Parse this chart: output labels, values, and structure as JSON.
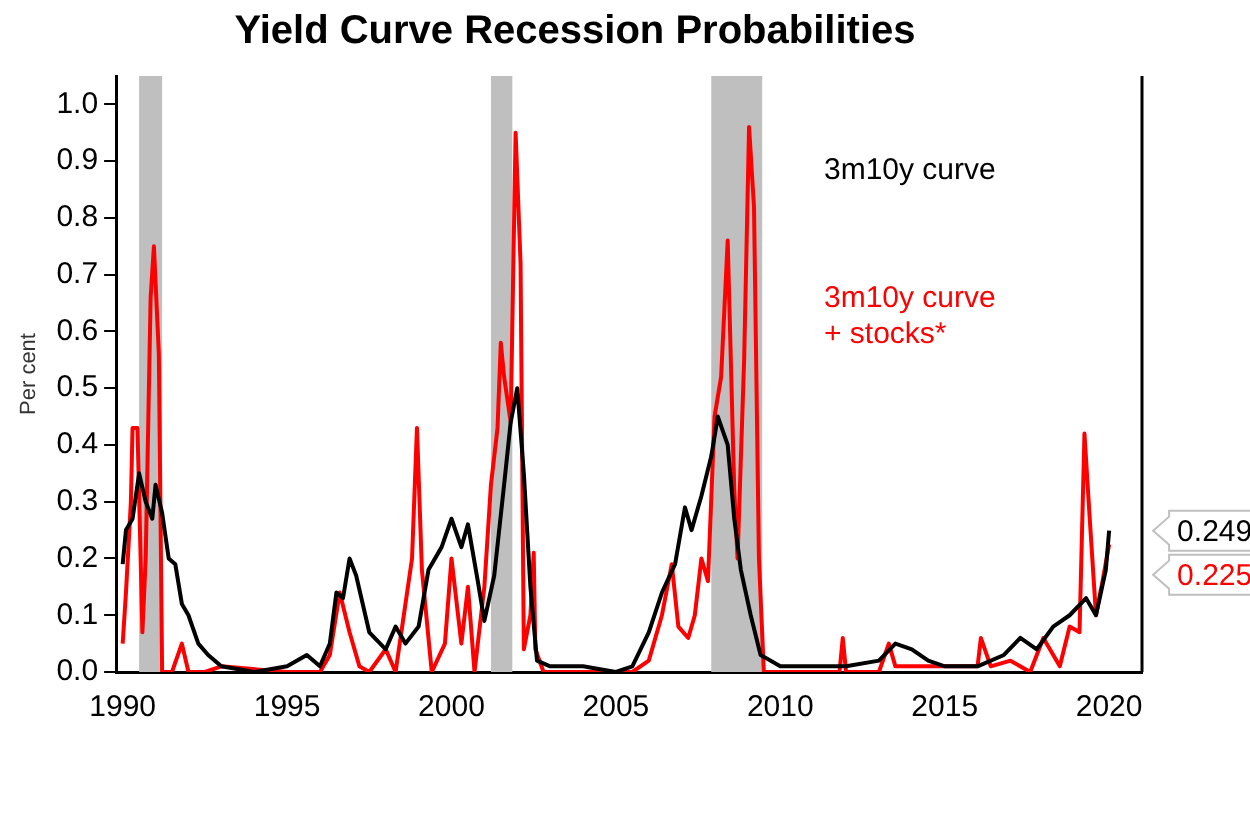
{
  "chart_data": {
    "type": "line",
    "title": "Yield Curve Recession Probabilities",
    "ylabel": "Per cent",
    "xlim": [
      1989.8,
      2021
    ],
    "xticks": [
      1990,
      1995,
      2000,
      2005,
      2010,
      2015,
      2020
    ],
    "ylim": [
      0,
      1.05
    ],
    "yticks": [
      {
        "value": 0,
        "label": "0.0"
      },
      0.1,
      0.2,
      0.3,
      0.4,
      0.5,
      0.6,
      0.7,
      0.8,
      0.9,
      {
        "value": 1,
        "label": "1.0"
      }
    ],
    "grid": false,
    "legend": "top right",
    "marker": "none",
    "line_style": "solid",
    "bands": [
      {
        "axis": "x",
        "from": 1990.5,
        "to": 1991.2,
        "color": "#bfbfbf"
      },
      {
        "axis": "x",
        "from": 2001.2,
        "to": 2001.85,
        "color": "#bfbfbf"
      },
      {
        "axis": "x",
        "from": 2007.9,
        "to": 2009.45,
        "color": "#bfbfbf"
      }
    ],
    "annotations": [
      {
        "text": "0.249",
        "x": 2020,
        "y": 0.249
      },
      {
        "text": "0.225",
        "x": 2020,
        "y": 0.225
      }
    ],
    "series": [
      {
        "name": "3m10y curve",
        "color": "#000000",
        "x": [
          1990,
          1990.1,
          1990.3,
          1990.5,
          1990.7,
          1990.9,
          1991,
          1991.2,
          1991.4,
          1991.6,
          1991.8,
          1992,
          1992.3,
          1992.6,
          1993,
          1994,
          1995,
          1995.6,
          1996,
          1996.3,
          1996.5,
          1996.7,
          1996.9,
          1997.1,
          1997.5,
          1998,
          1998.3,
          1998.6,
          1999,
          1999.3,
          1999.7,
          2000,
          2000.3,
          2000.5,
          2000.8,
          2001,
          2001.3,
          2001.6,
          2001.8,
          2002,
          2002.2,
          2002.4,
          2002.6,
          2003,
          2004,
          2005,
          2005.5,
          2006,
          2006.4,
          2006.8,
          2007.1,
          2007.3,
          2007.6,
          2007.9,
          2008.1,
          2008.4,
          2008.6,
          2008.8,
          2009.1,
          2009.4,
          2010,
          2011,
          2012,
          2013,
          2013.5,
          2014,
          2014.5,
          2015,
          2016,
          2016.8,
          2017.3,
          2017.8,
          2018.3,
          2018.8,
          2019.3,
          2019.6,
          2019.9,
          2020
        ],
        "values": [
          0.19,
          0.25,
          0.27,
          0.35,
          0.3,
          0.27,
          0.33,
          0.28,
          0.2,
          0.19,
          0.12,
          0.1,
          0.05,
          0.03,
          0.01,
          0,
          0.01,
          0.03,
          0.01,
          0.05,
          0.14,
          0.13,
          0.2,
          0.17,
          0.07,
          0.04,
          0.08,
          0.05,
          0.08,
          0.18,
          0.22,
          0.27,
          0.22,
          0.26,
          0.16,
          0.09,
          0.17,
          0.33,
          0.44,
          0.5,
          0.35,
          0.15,
          0.02,
          0.01,
          0.01,
          0,
          0.01,
          0.07,
          0.14,
          0.19,
          0.29,
          0.25,
          0.31,
          0.38,
          0.45,
          0.4,
          0.27,
          0.18,
          0.1,
          0.03,
          0.01,
          0.01,
          0.01,
          0.02,
          0.05,
          0.04,
          0.02,
          0.01,
          0.01,
          0.03,
          0.06,
          0.04,
          0.08,
          0.1,
          0.13,
          0.1,
          0.18,
          0.249
        ]
      },
      {
        "name": "3m10y curve + stocks*",
        "color": "#ff0000",
        "x": [
          1990,
          1990.1,
          1990.25,
          1990.3,
          1990.45,
          1990.6,
          1990.7,
          1990.85,
          1990.95,
          1991.1,
          1991.2,
          1991.5,
          1991.8,
          1992,
          1992.5,
          1993,
          1995,
          1996,
          1996.3,
          1996.6,
          1996.9,
          1997.2,
          1997.5,
          1998,
          1998.3,
          1998.8,
          1998.95,
          1999.1,
          1999.4,
          1999.8,
          2000,
          2000.3,
          2000.5,
          2000.7,
          2001,
          2001.2,
          2001.4,
          2001.5,
          2001.6,
          2001.8,
          2001.95,
          2002.1,
          2002.2,
          2002.4,
          2002.5,
          2002.55,
          2002.8,
          2004,
          2005.5,
          2006,
          2006.4,
          2006.7,
          2006.9,
          2007.2,
          2007.4,
          2007.6,
          2007.8,
          2008,
          2008.2,
          2008.4,
          2008.6,
          2008.7,
          2008.9,
          2009.05,
          2009.2,
          2009.35,
          2009.5,
          2010,
          2011.8,
          2011.9,
          2012,
          2013,
          2013.3,
          2013.5,
          2015,
          2016,
          2016.1,
          2016.4,
          2017,
          2017.6,
          2018,
          2018.5,
          2018.8,
          2019.1,
          2019.25,
          2019.4,
          2019.6,
          2019.8,
          2020
        ],
        "values": [
          0.05,
          0.14,
          0.3,
          0.43,
          0.43,
          0.07,
          0.2,
          0.66,
          0.75,
          0.56,
          0,
          0,
          0.05,
          0,
          0,
          0.01,
          0,
          0,
          0.03,
          0.14,
          0.07,
          0.01,
          0,
          0.04,
          0,
          0.2,
          0.43,
          0.18,
          0,
          0.05,
          0.2,
          0.05,
          0.15,
          0,
          0.15,
          0.33,
          0.43,
          0.58,
          0.52,
          0.44,
          0.95,
          0.72,
          0.04,
          0.1,
          0.21,
          0.04,
          0,
          0,
          0,
          0.02,
          0.1,
          0.19,
          0.08,
          0.06,
          0.1,
          0.2,
          0.16,
          0.45,
          0.52,
          0.76,
          0.32,
          0.2,
          0.55,
          0.96,
          0.82,
          0.2,
          0,
          0,
          0,
          0.06,
          0,
          0,
          0.05,
          0.01,
          0.01,
          0.01,
          0.06,
          0.01,
          0.02,
          0,
          0.06,
          0.01,
          0.08,
          0.07,
          0.42,
          0.28,
          0.1,
          0.16,
          0.225
        ]
      }
    ]
  }
}
